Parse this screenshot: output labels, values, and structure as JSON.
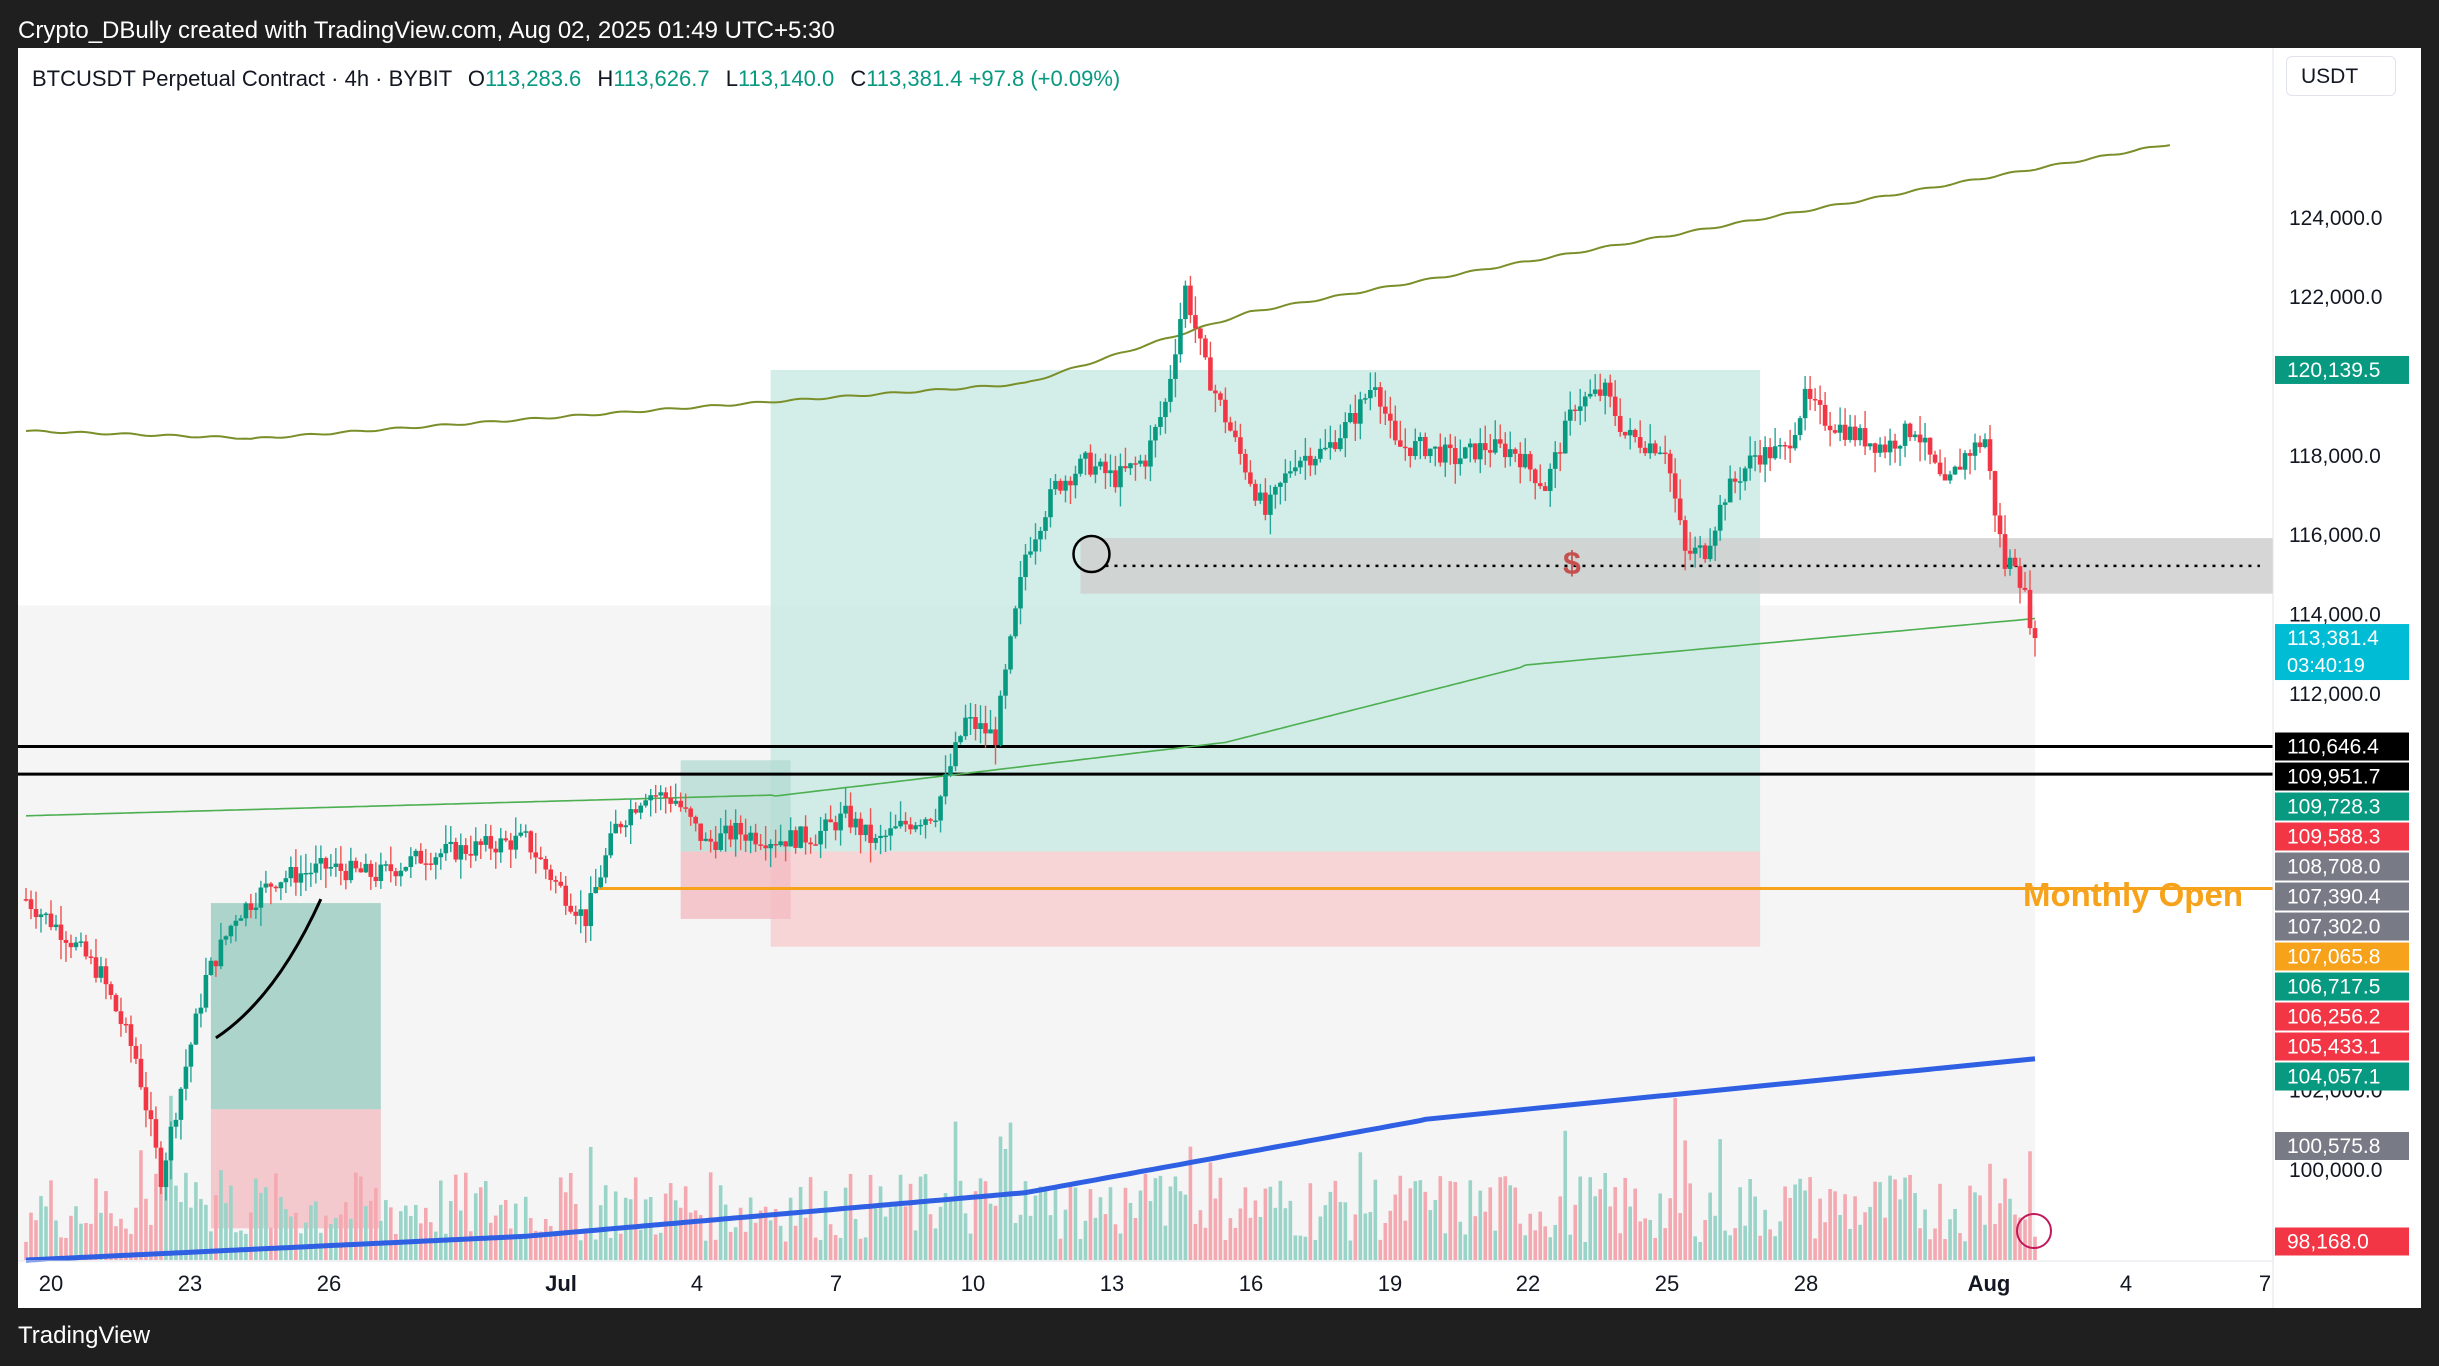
{
  "header": {
    "text": "Crypto_DBully created with TradingView.com, Aug 02, 2025 01:49 UTC+5:30"
  },
  "footer": {
    "brand": "TradingView"
  },
  "colors": {
    "up": "#089981",
    "down": "#f23645",
    "upWick": "#26a69a",
    "downWick": "#ef5350",
    "monthly": "#f7a21b",
    "ema": "#2f5fe3",
    "band": "#7a8f2a"
  },
  "legend": {
    "symbol": "BTCUSDT Perpetual Contract · 4h · BYBIT",
    "o_label": "O",
    "o": "113,283.6",
    "h_label": "H",
    "h": "113,626.7",
    "l_label": "L",
    "l": "113,140.0",
    "c_label": "C",
    "c": "113,381.4",
    "change": "+97.8 (+0.09%)"
  },
  "currency_button": "USDT",
  "annotations": {
    "monthly_open": "Monthly Open",
    "dollar": "$"
  },
  "chart_data": {
    "type": "candlestick",
    "interval": "4h",
    "ylim": [
      97500,
      127500
    ],
    "price_axis_ticks": [
      "124,000.0",
      "122,000.0",
      "118,000.0",
      "116,000.0",
      "114,000.0",
      "112,000.0",
      "102,000.0",
      "100,000.0"
    ],
    "time_axis_ticks": [
      "20",
      "23",
      "26",
      "Jul",
      "4",
      "7",
      "10",
      "13",
      "16",
      "19",
      "22",
      "25",
      "28",
      "Aug",
      "4",
      "7"
    ],
    "price_labels": [
      {
        "text": "120,139.5",
        "value": 120139.5,
        "color": "#089981"
      },
      {
        "text": "113,381.4",
        "value": 113381.4,
        "sub": "03:40:19",
        "color": "#00bcd4"
      },
      {
        "text": "110,646.4",
        "value": 110646.4,
        "color": "#000000"
      },
      {
        "text": "109,951.7",
        "value": 109951.7,
        "color": "#000000"
      },
      {
        "text": "109,728.3",
        "value": 109728.3,
        "color": "#089981"
      },
      {
        "text": "109,588.3",
        "value": 109588.3,
        "color": "#f23645"
      },
      {
        "text": "108,708.0",
        "value": 108708.0,
        "color": "#787b86"
      },
      {
        "text": "107,390.4",
        "value": 107390.4,
        "color": "#787b86"
      },
      {
        "text": "107,302.0",
        "value": 107302.0,
        "color": "#787b86"
      },
      {
        "text": "107,065.8",
        "value": 107065.8,
        "color": "#f7a21b"
      },
      {
        "text": "106,717.5",
        "value": 106717.5,
        "color": "#089981"
      },
      {
        "text": "106,256.2",
        "value": 106256.2,
        "color": "#f23645"
      },
      {
        "text": "105,433.1",
        "value": 105433.1,
        "color": "#f23645"
      },
      {
        "text": "104,057.1",
        "value": 104057.1,
        "color": "#089981"
      },
      {
        "text": "100,575.8",
        "value": 100575.8,
        "color": "#787b86"
      },
      {
        "text": "98,168.0",
        "value": 98168.0,
        "color": "#f23645"
      }
    ],
    "horizontal_lines": [
      {
        "value": 110646.4,
        "style": "solid",
        "color": "#000000"
      },
      {
        "value": 109951.7,
        "style": "solid",
        "color": "#000000"
      },
      {
        "value": 107065.8,
        "style": "solid",
        "color": "#f7a21b"
      },
      {
        "value": 115200,
        "style": "dotted",
        "color": "#000000"
      }
    ],
    "close_path": [
      [
        0,
        106800
      ],
      [
        8,
        105900
      ],
      [
        15,
        104900
      ],
      [
        22,
        102800
      ],
      [
        27,
        99800
      ],
      [
        30,
        101500
      ],
      [
        36,
        104800
      ],
      [
        42,
        106400
      ],
      [
        50,
        107300
      ],
      [
        60,
        107600
      ],
      [
        70,
        107400
      ],
      [
        80,
        107900
      ],
      [
        90,
        108100
      ],
      [
        100,
        108300
      ],
      [
        106,
        107200
      ],
      [
        112,
        106300
      ],
      [
        118,
        108600
      ],
      [
        124,
        109500
      ],
      [
        130,
        109300
      ],
      [
        136,
        108200
      ],
      [
        142,
        108500
      ],
      [
        150,
        108300
      ],
      [
        158,
        108400
      ],
      [
        164,
        108900
      ],
      [
        170,
        108200
      ],
      [
        176,
        108700
      ],
      [
        182,
        109000
      ],
      [
        188,
        111300
      ],
      [
        194,
        110900
      ],
      [
        200,
        115500
      ],
      [
        206,
        117200
      ],
      [
        212,
        117800
      ],
      [
        218,
        117400
      ],
      [
        224,
        117900
      ],
      [
        228,
        119300
      ],
      [
        232,
        122200
      ],
      [
        236,
        120200
      ],
      [
        242,
        118300
      ],
      [
        248,
        116500
      ],
      [
        254,
        117900
      ],
      [
        260,
        118100
      ],
      [
        266,
        119000
      ],
      [
        270,
        119900
      ],
      [
        274,
        118200
      ],
      [
        280,
        118200
      ],
      [
        286,
        117900
      ],
      [
        292,
        118200
      ],
      [
        298,
        118100
      ],
      [
        304,
        117200
      ],
      [
        310,
        119300
      ],
      [
        316,
        119600
      ],
      [
        320,
        118500
      ],
      [
        324,
        118300
      ],
      [
        328,
        118200
      ],
      [
        332,
        115500
      ],
      [
        336,
        115600
      ],
      [
        340,
        117000
      ],
      [
        346,
        118000
      ],
      [
        352,
        118100
      ],
      [
        356,
        119400
      ],
      [
        360,
        118900
      ],
      [
        366,
        118500
      ],
      [
        372,
        118200
      ],
      [
        378,
        118700
      ],
      [
        384,
        117100
      ],
      [
        388,
        118000
      ],
      [
        392,
        118400
      ],
      [
        394,
        116600
      ],
      [
        396,
        115200
      ],
      [
        398,
        115400
      ],
      [
        400,
        114400
      ],
      [
        402,
        113381
      ]
    ],
    "volume_scale": "relative",
    "overlays": [
      "upper band",
      "lower band",
      "EMA"
    ]
  }
}
